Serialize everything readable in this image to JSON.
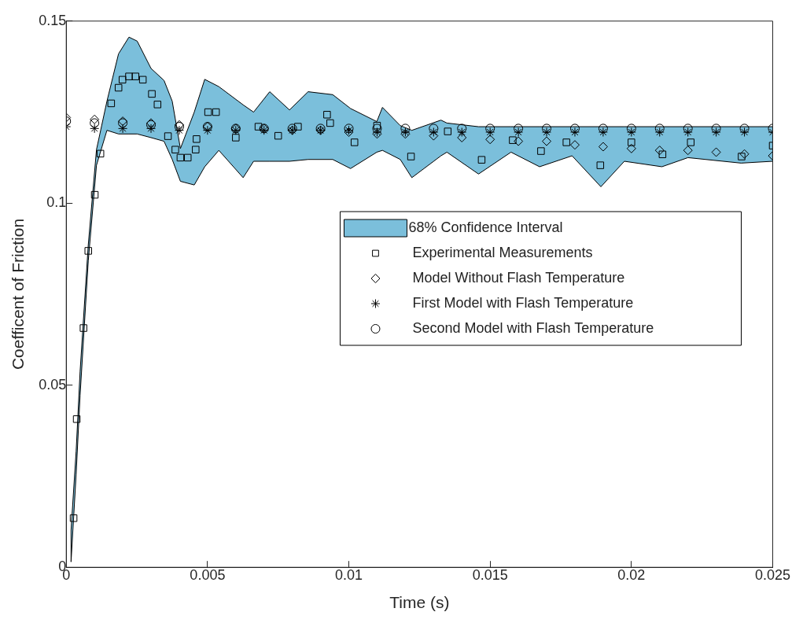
{
  "chart_data": {
    "type": "scatter",
    "xlabel": "Time (s)",
    "ylabel": "Coefficent of Friction",
    "xlim": [
      0,
      0.025
    ],
    "xticks": [
      0,
      0.005,
      0.01,
      0.015,
      0.02,
      0.025
    ],
    "ylim": [
      0,
      0.15
    ],
    "yticks": [
      0,
      0.05,
      0.1,
      0.15
    ],
    "grid": false,
    "legend": "right",
    "series": [
      {
        "name": "68% Confidence Interval",
        "type": "area",
        "color": "#7bbfdb",
        "values": [
          null,
          null,
          null,
          null,
          null,
          null,
          null,
          null,
          null,
          null,
          null,
          null,
          null,
          null,
          null,
          null,
          null,
          null,
          null,
          null,
          null,
          null,
          null,
          null,
          null,
          null,
          null,
          null,
          null,
          null,
          null,
          null,
          null,
          null,
          null,
          null,
          null,
          null,
          null
        ],
        "x": [
          0.00017,
          0.00035,
          0.00049,
          0.00078,
          0.00107,
          0.00144,
          0.00185,
          0.00222,
          0.00251,
          0.003,
          0.00346,
          0.00375,
          0.00404,
          0.00453,
          0.0049,
          0.0054,
          0.00626,
          0.00663,
          0.0072,
          0.0079,
          0.00856,
          0.00943,
          0.01006,
          0.01099,
          0.01119,
          0.01182,
          0.01223,
          0.01326,
          0.01347,
          0.01459,
          0.01574,
          0.01675,
          0.0179,
          0.01892,
          0.01975,
          0.02108,
          0.022,
          0.02388,
          0.025
        ],
        "upper": [
          0.0102,
          0.0319,
          0.0538,
          0.0886,
          0.1147,
          0.128,
          0.141,
          0.1456,
          0.1445,
          0.137,
          0.1337,
          0.128,
          0.115,
          0.125,
          0.134,
          0.132,
          0.127,
          0.125,
          0.1306,
          0.1256,
          0.1306,
          0.1298,
          0.126,
          0.1224,
          0.1263,
          0.1213,
          0.12,
          0.1228,
          0.122,
          0.121,
          0.121,
          0.121,
          0.121,
          0.121,
          0.121,
          0.121,
          0.121,
          0.121,
          0.121
        ],
        "lower": [
          0.0015,
          0.0255,
          0.0472,
          0.0842,
          0.1104,
          0.12,
          0.119,
          0.119,
          0.119,
          0.118,
          0.117,
          0.112,
          0.106,
          0.105,
          0.11,
          0.1145,
          0.107,
          0.1115,
          0.1115,
          0.1115,
          0.112,
          0.112,
          0.1095,
          0.114,
          0.1145,
          0.112,
          0.107,
          0.113,
          0.114,
          0.108,
          0.114,
          0.11,
          0.113,
          0.1045,
          0.1115,
          0.11,
          0.1125,
          0.111,
          0.1115
        ]
      },
      {
        "name": "Experimental Measurements",
        "marker": "square",
        "color": "#000000",
        "x": [
          0.00026,
          0.00037,
          0.00061,
          0.00078,
          0.00101,
          0.00121,
          0.00159,
          0.00185,
          0.00199,
          0.00222,
          0.00245,
          0.00271,
          0.00303,
          0.00323,
          0.0036,
          0.00386,
          0.00404,
          0.0043,
          0.00458,
          0.00461,
          0.00502,
          0.0053,
          0.006,
          0.0068,
          0.0075,
          0.0082,
          0.00923,
          0.00934,
          0.0102,
          0.011,
          0.0122,
          0.0135,
          0.0147,
          0.0158,
          0.0168,
          0.0177,
          0.0189,
          0.02,
          0.0211,
          0.0221,
          0.0239,
          0.025
        ],
        "values": [
          0.0135,
          0.0407,
          0.0657,
          0.0869,
          0.1023,
          0.1136,
          0.1274,
          0.1317,
          0.1339,
          0.1348,
          0.1348,
          0.1339,
          0.13,
          0.1271,
          0.1184,
          0.1147,
          0.1125,
          0.1125,
          0.1147,
          0.1176,
          0.125,
          0.125,
          0.118,
          0.121,
          0.1185,
          0.121,
          0.1243,
          0.122,
          0.1167,
          0.1213,
          0.1128,
          0.1197,
          0.1119,
          0.1173,
          0.1143,
          0.1167,
          0.1104,
          0.1167,
          0.1134,
          0.1167,
          0.1128,
          0.1158
        ]
      },
      {
        "name": "Model Without Flash Temperature",
        "marker": "diamond",
        "color": "#000000",
        "x": [
          0,
          0.001,
          0.002,
          0.003,
          0.004,
          0.005,
          0.006,
          0.007,
          0.008,
          0.009,
          0.01,
          0.011,
          0.012,
          0.013,
          0.014,
          0.015,
          0.016,
          0.017,
          0.018,
          0.019,
          0.02,
          0.021,
          0.022,
          0.023,
          0.024,
          0.025
        ],
        "values": [
          0.1235,
          0.123,
          0.1225,
          0.122,
          0.1215,
          0.121,
          0.1205,
          0.1205,
          0.12,
          0.12,
          0.1195,
          0.119,
          0.119,
          0.1185,
          0.118,
          0.1175,
          0.117,
          0.117,
          0.116,
          0.1155,
          0.115,
          0.1145,
          0.1145,
          0.114,
          0.1135,
          0.113
        ]
      },
      {
        "name": "First Model with Flash Temperature",
        "marker": "cross",
        "color": "#000000",
        "x": [
          0,
          0.001,
          0.002,
          0.003,
          0.004,
          0.005,
          0.006,
          0.007,
          0.008,
          0.009,
          0.01,
          0.011,
          0.012,
          0.013,
          0.014,
          0.015,
          0.016,
          0.017,
          0.018,
          0.019,
          0.02,
          0.021,
          0.022,
          0.023,
          0.024,
          0.025
        ],
        "values": [
          0.121,
          0.1205,
          0.1205,
          0.1205,
          0.12,
          0.12,
          0.12,
          0.12,
          0.12,
          0.12,
          0.12,
          0.1195,
          0.1195,
          0.1195,
          0.1195,
          0.1195,
          0.1195,
          0.1195,
          0.1195,
          0.1195,
          0.1195,
          0.1195,
          0.1195,
          0.1195,
          0.1195,
          0.1195
        ]
      },
      {
        "name": "Second Model with Flash Temperature",
        "marker": "circle",
        "color": "#000000",
        "x": [
          0,
          0.001,
          0.002,
          0.003,
          0.004,
          0.005,
          0.006,
          0.007,
          0.008,
          0.009,
          0.01,
          0.011,
          0.012,
          0.013,
          0.014,
          0.015,
          0.016,
          0.017,
          0.018,
          0.019,
          0.02,
          0.021,
          0.022,
          0.023,
          0.024,
          0.025
        ],
        "values": [
          0.1225,
          0.122,
          0.122,
          0.1215,
          0.121,
          0.121,
          0.1205,
          0.1205,
          0.1205,
          0.1205,
          0.1205,
          0.1205,
          0.1205,
          0.1205,
          0.1205,
          0.1205,
          0.1205,
          0.1205,
          0.1205,
          0.1205,
          0.1205,
          0.1205,
          0.1205,
          0.1205,
          0.1205,
          0.1205
        ]
      }
    ]
  }
}
